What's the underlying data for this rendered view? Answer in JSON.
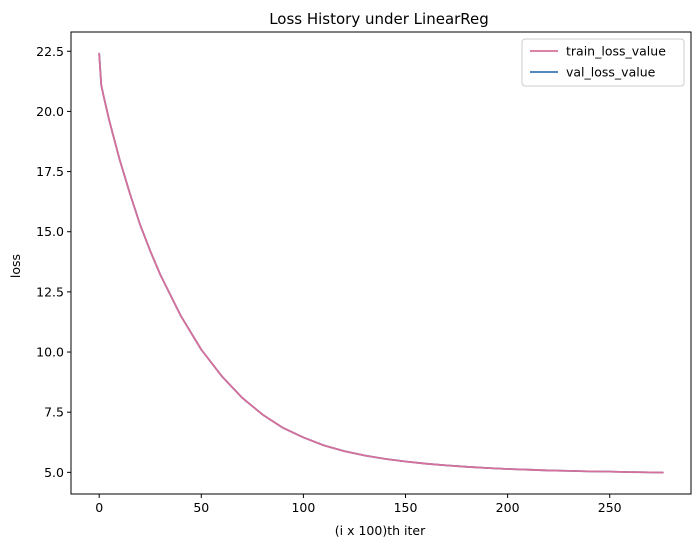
{
  "chart_data": {
    "type": "line",
    "title": "Loss History under LinearReg",
    "xlabel": "(i x 100)th iter",
    "ylabel": "loss",
    "xlim": [
      -13.8,
      289.8
    ],
    "ylim": [
      4.1,
      23.3
    ],
    "xticks": [
      0,
      50,
      100,
      150,
      200,
      250
    ],
    "yticks": [
      5.0,
      7.5,
      10.0,
      12.5,
      15.0,
      17.5,
      20.0,
      22.5
    ],
    "ytick_labels": [
      "5.0",
      "7.5",
      "10.0",
      "12.5",
      "15.0",
      "17.5",
      "20.0",
      "22.5"
    ],
    "grid": false,
    "legend_position": "top-right",
    "series": [
      {
        "name": "train_loss_value",
        "color": "#d6709a",
        "x": [
          0,
          1,
          2,
          5,
          10,
          15,
          20,
          25,
          30,
          40,
          50,
          60,
          70,
          80,
          90,
          100,
          110,
          120,
          130,
          140,
          150,
          160,
          170,
          180,
          190,
          200,
          210,
          220,
          230,
          240,
          250,
          260,
          270,
          276
        ],
        "y": [
          22.4,
          21.1,
          20.7,
          19.6,
          18.0,
          16.6,
          15.3,
          14.2,
          13.2,
          11.5,
          10.1,
          9.0,
          8.1,
          7.4,
          6.85,
          6.45,
          6.12,
          5.88,
          5.7,
          5.56,
          5.45,
          5.36,
          5.29,
          5.23,
          5.18,
          5.14,
          5.11,
          5.08,
          5.06,
          5.04,
          5.03,
          5.01,
          5.0,
          4.99
        ]
      },
      {
        "name": "val_loss_value",
        "color": "#3b78b7",
        "x": [
          0,
          1,
          2,
          5,
          10,
          15,
          20,
          25,
          30,
          40,
          50,
          60,
          70,
          80,
          90,
          100,
          110,
          120,
          130,
          140,
          150,
          160,
          170,
          180,
          190,
          200,
          210,
          220,
          230,
          240,
          250,
          260,
          270,
          276
        ],
        "y": [
          22.4,
          21.1,
          20.7,
          19.6,
          18.0,
          16.6,
          15.3,
          14.2,
          13.2,
          11.5,
          10.1,
          9.0,
          8.1,
          7.4,
          6.85,
          6.45,
          6.12,
          5.88,
          5.7,
          5.56,
          5.45,
          5.36,
          5.29,
          5.23,
          5.18,
          5.14,
          5.11,
          5.08,
          5.06,
          5.04,
          5.03,
          5.01,
          5.0,
          4.99
        ]
      }
    ]
  }
}
